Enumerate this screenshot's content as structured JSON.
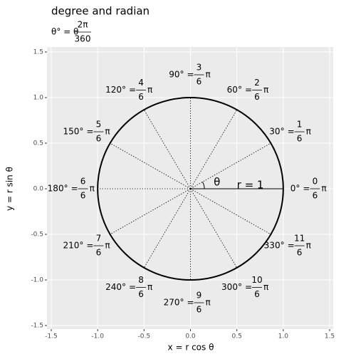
{
  "chart_data": {
    "type": "unit-circle",
    "title": "degree and radian",
    "subtitle": {
      "lhs": "θ° = θ",
      "numerator": "2π",
      "denominator": "360"
    },
    "x_label": "x = r cos θ",
    "y_label": "y = r sin θ",
    "xlim": [
      -1.5,
      1.5
    ],
    "ylim": [
      -1.5,
      1.5
    ],
    "xticks": [
      -1.5,
      {
        "value": -1,
        "label": "-1.0"
      },
      -0.5,
      {
        "value": 0,
        "label": "0.0"
      },
      0.5,
      {
        "value": 1,
        "label": "1.0"
      },
      1.5
    ],
    "yticks": [
      -1.5,
      {
        "value": -1,
        "label": "-1.0"
      },
      -0.5,
      {
        "value": 0,
        "label": "0.0"
      },
      0.5,
      {
        "value": 1,
        "label": "1.0"
      },
      1.5
    ],
    "grid": true,
    "radius": 1,
    "radius_label": "r = 1",
    "theta_label": "θ",
    "equals": "=",
    "pi": "π",
    "spokes": [
      {
        "value": 0,
        "label": "0°",
        "numerator": "0",
        "denominator": "6"
      },
      {
        "value": 30,
        "label": "30°",
        "numerator": "1",
        "denominator": "6"
      },
      {
        "value": 60,
        "label": "60°",
        "numerator": "2",
        "denominator": "6"
      },
      {
        "value": 90,
        "label": "90°",
        "numerator": "3",
        "denominator": "6"
      },
      {
        "value": 120,
        "label": "120°",
        "numerator": "4",
        "denominator": "6"
      },
      {
        "value": 150,
        "label": "150°",
        "numerator": "5",
        "denominator": "6"
      },
      {
        "value": 180,
        "label": "180°",
        "numerator": "6",
        "denominator": "6"
      },
      {
        "value": 210,
        "label": "210°",
        "numerator": "7",
        "denominator": "6"
      },
      {
        "value": 240,
        "label": "240°",
        "numerator": "8",
        "denominator": "6"
      },
      {
        "value": 270,
        "label": "270°",
        "numerator": "9",
        "denominator": "6"
      },
      {
        "value": 300,
        "label": "300°",
        "numerator": "10",
        "denominator": "6"
      },
      {
        "value": 330,
        "label": "330°",
        "numerator": "11",
        "denominator": "6"
      }
    ]
  }
}
